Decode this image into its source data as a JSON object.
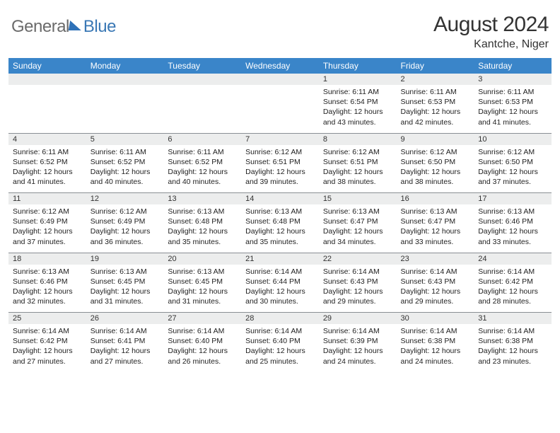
{
  "logo": {
    "general": "General",
    "blue": "Blue"
  },
  "title": "August 2024",
  "location": "Kantche, Niger",
  "colors": {
    "header_bg": "#3a85c9",
    "header_text": "#ffffff",
    "daynum_bg": "#eceded",
    "divider": "#8a8f94",
    "body_text": "#222222",
    "logo_gray": "#6b6b6b",
    "logo_blue": "#3a78b5",
    "page_bg": "#ffffff"
  },
  "typography": {
    "title_fontsize": 30,
    "location_fontsize": 16,
    "weekday_fontsize": 12,
    "daynum_fontsize": 11,
    "detail_fontsize": 10.5
  },
  "weekdays": [
    "Sunday",
    "Monday",
    "Tuesday",
    "Wednesday",
    "Thursday",
    "Friday",
    "Saturday"
  ],
  "weeks": [
    [
      null,
      null,
      null,
      null,
      {
        "n": "1",
        "sunrise": "6:11 AM",
        "sunset": "6:54 PM",
        "daylight": "12 hours and 43 minutes."
      },
      {
        "n": "2",
        "sunrise": "6:11 AM",
        "sunset": "6:53 PM",
        "daylight": "12 hours and 42 minutes."
      },
      {
        "n": "3",
        "sunrise": "6:11 AM",
        "sunset": "6:53 PM",
        "daylight": "12 hours and 41 minutes."
      }
    ],
    [
      {
        "n": "4",
        "sunrise": "6:11 AM",
        "sunset": "6:52 PM",
        "daylight": "12 hours and 41 minutes."
      },
      {
        "n": "5",
        "sunrise": "6:11 AM",
        "sunset": "6:52 PM",
        "daylight": "12 hours and 40 minutes."
      },
      {
        "n": "6",
        "sunrise": "6:11 AM",
        "sunset": "6:52 PM",
        "daylight": "12 hours and 40 minutes."
      },
      {
        "n": "7",
        "sunrise": "6:12 AM",
        "sunset": "6:51 PM",
        "daylight": "12 hours and 39 minutes."
      },
      {
        "n": "8",
        "sunrise": "6:12 AM",
        "sunset": "6:51 PM",
        "daylight": "12 hours and 38 minutes."
      },
      {
        "n": "9",
        "sunrise": "6:12 AM",
        "sunset": "6:50 PM",
        "daylight": "12 hours and 38 minutes."
      },
      {
        "n": "10",
        "sunrise": "6:12 AM",
        "sunset": "6:50 PM",
        "daylight": "12 hours and 37 minutes."
      }
    ],
    [
      {
        "n": "11",
        "sunrise": "6:12 AM",
        "sunset": "6:49 PM",
        "daylight": "12 hours and 37 minutes."
      },
      {
        "n": "12",
        "sunrise": "6:12 AM",
        "sunset": "6:49 PM",
        "daylight": "12 hours and 36 minutes."
      },
      {
        "n": "13",
        "sunrise": "6:13 AM",
        "sunset": "6:48 PM",
        "daylight": "12 hours and 35 minutes."
      },
      {
        "n": "14",
        "sunrise": "6:13 AM",
        "sunset": "6:48 PM",
        "daylight": "12 hours and 35 minutes."
      },
      {
        "n": "15",
        "sunrise": "6:13 AM",
        "sunset": "6:47 PM",
        "daylight": "12 hours and 34 minutes."
      },
      {
        "n": "16",
        "sunrise": "6:13 AM",
        "sunset": "6:47 PM",
        "daylight": "12 hours and 33 minutes."
      },
      {
        "n": "17",
        "sunrise": "6:13 AM",
        "sunset": "6:46 PM",
        "daylight": "12 hours and 33 minutes."
      }
    ],
    [
      {
        "n": "18",
        "sunrise": "6:13 AM",
        "sunset": "6:46 PM",
        "daylight": "12 hours and 32 minutes."
      },
      {
        "n": "19",
        "sunrise": "6:13 AM",
        "sunset": "6:45 PM",
        "daylight": "12 hours and 31 minutes."
      },
      {
        "n": "20",
        "sunrise": "6:13 AM",
        "sunset": "6:45 PM",
        "daylight": "12 hours and 31 minutes."
      },
      {
        "n": "21",
        "sunrise": "6:14 AM",
        "sunset": "6:44 PM",
        "daylight": "12 hours and 30 minutes."
      },
      {
        "n": "22",
        "sunrise": "6:14 AM",
        "sunset": "6:43 PM",
        "daylight": "12 hours and 29 minutes."
      },
      {
        "n": "23",
        "sunrise": "6:14 AM",
        "sunset": "6:43 PM",
        "daylight": "12 hours and 29 minutes."
      },
      {
        "n": "24",
        "sunrise": "6:14 AM",
        "sunset": "6:42 PM",
        "daylight": "12 hours and 28 minutes."
      }
    ],
    [
      {
        "n": "25",
        "sunrise": "6:14 AM",
        "sunset": "6:42 PM",
        "daylight": "12 hours and 27 minutes."
      },
      {
        "n": "26",
        "sunrise": "6:14 AM",
        "sunset": "6:41 PM",
        "daylight": "12 hours and 27 minutes."
      },
      {
        "n": "27",
        "sunrise": "6:14 AM",
        "sunset": "6:40 PM",
        "daylight": "12 hours and 26 minutes."
      },
      {
        "n": "28",
        "sunrise": "6:14 AM",
        "sunset": "6:40 PM",
        "daylight": "12 hours and 25 minutes."
      },
      {
        "n": "29",
        "sunrise": "6:14 AM",
        "sunset": "6:39 PM",
        "daylight": "12 hours and 24 minutes."
      },
      {
        "n": "30",
        "sunrise": "6:14 AM",
        "sunset": "6:38 PM",
        "daylight": "12 hours and 24 minutes."
      },
      {
        "n": "31",
        "sunrise": "6:14 AM",
        "sunset": "6:38 PM",
        "daylight": "12 hours and 23 minutes."
      }
    ]
  ],
  "labels": {
    "sunrise": "Sunrise: ",
    "sunset": "Sunset: ",
    "daylight": "Daylight: "
  }
}
